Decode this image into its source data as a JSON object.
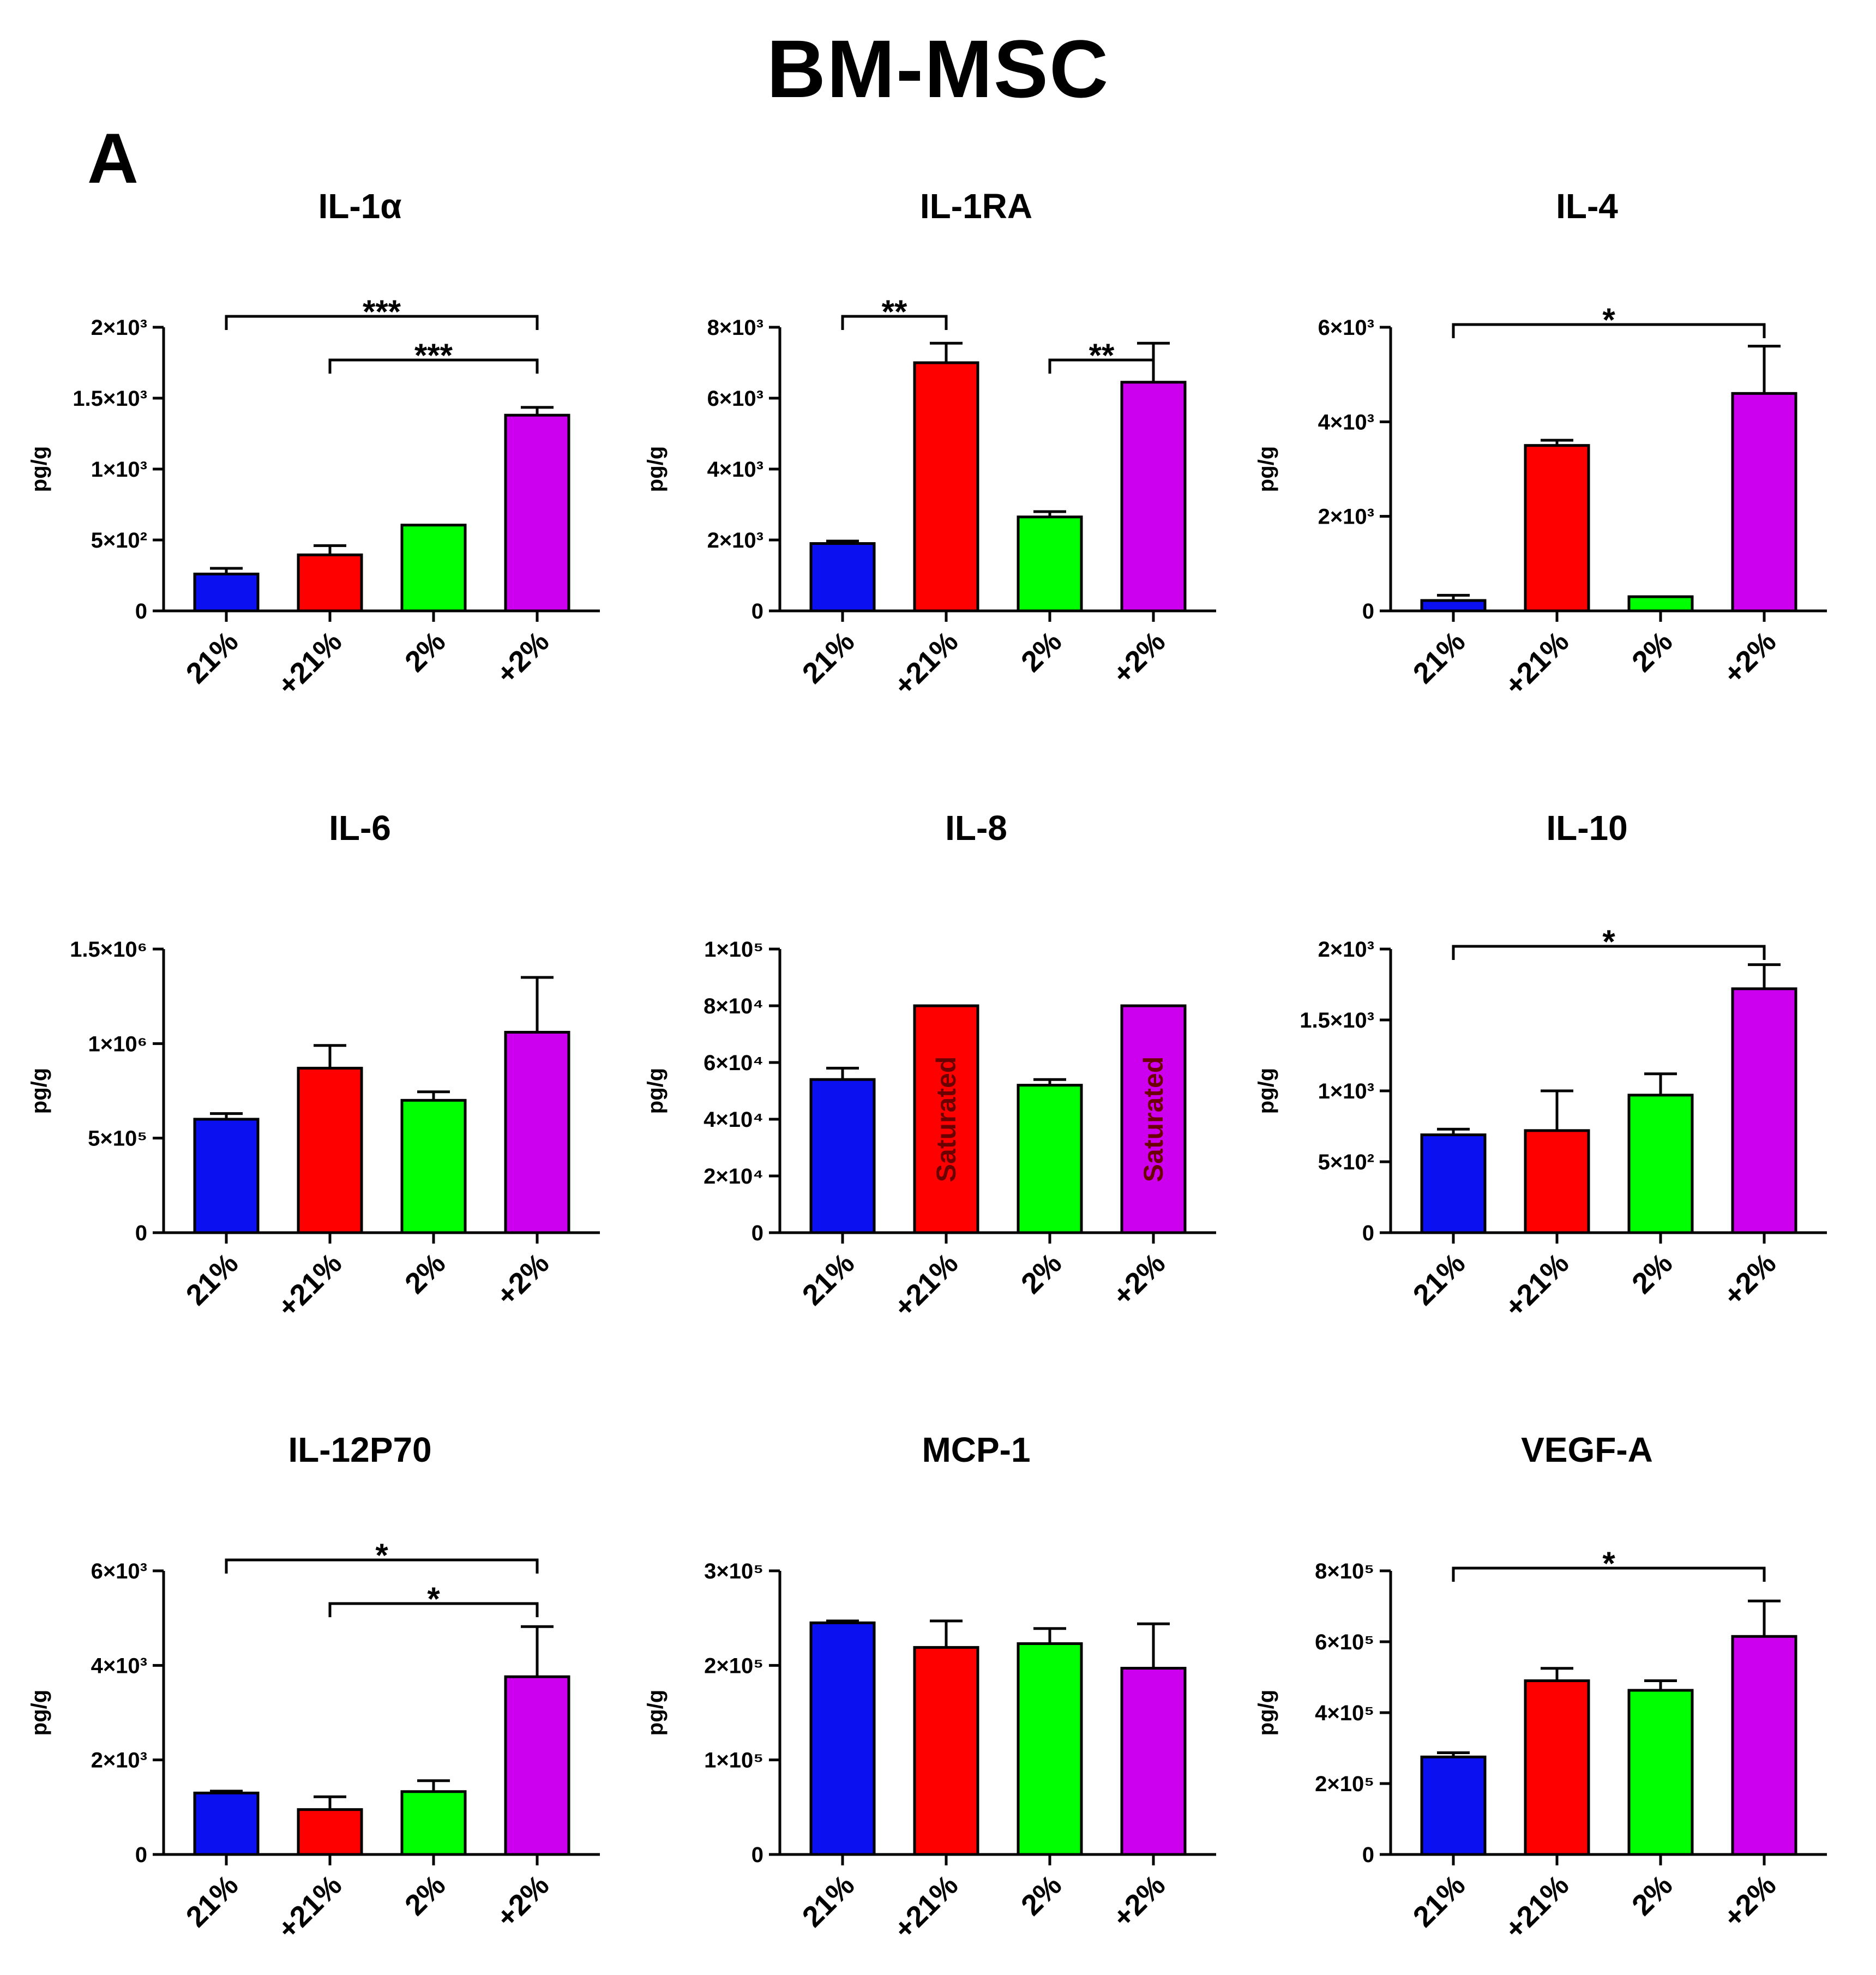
{
  "figure": {
    "title": "BM-MSC",
    "panel_label": "A"
  },
  "colors": {
    "21%": "#0a10f0",
    "+21%": "#ff0000",
    "2%": "#00ff00",
    "+2%": "#cc00ee"
  },
  "chart_data": [
    {
      "type": "bar",
      "title": "IL-1α",
      "ylabel": "pg/g",
      "ylim": [
        0,
        2000
      ],
      "yticks": [
        0,
        500,
        1000,
        1500,
        2000
      ],
      "ytick_labels": [
        "0",
        "5×10²",
        "1×10³",
        "1.5×10³",
        "2×10³"
      ],
      "categories": [
        "21%",
        "+21%",
        "2%",
        "+2%"
      ],
      "values": [
        260,
        395,
        605,
        1380
      ],
      "errors": [
        40,
        65,
        0,
        55
      ],
      "significance": [
        {
          "from": 0,
          "to": 3,
          "label": "***"
        },
        {
          "from": 1,
          "to": 3,
          "label": "***"
        }
      ]
    },
    {
      "type": "bar",
      "title": "IL-1RA",
      "ylabel": "pg/g",
      "ylim": [
        0,
        8000
      ],
      "yticks": [
        0,
        2000,
        4000,
        6000,
        8000
      ],
      "ytick_labels": [
        "0",
        "2×10³",
        "4×10³",
        "6×10³",
        "8×10³"
      ],
      "categories": [
        "21%",
        "+21%",
        "2%",
        "+2%"
      ],
      "values": [
        1900,
        7000,
        2650,
        6450
      ],
      "errors": [
        70,
        550,
        150,
        1100
      ],
      "significance": [
        {
          "from": 0,
          "to": 1,
          "label": "**"
        },
        {
          "from": 2,
          "to": 3,
          "label": "**"
        }
      ]
    },
    {
      "type": "bar",
      "title": "IL-4",
      "ylabel": "pg/g",
      "ylim": [
        0,
        6000
      ],
      "yticks": [
        0,
        2000,
        4000,
        6000
      ],
      "ytick_labels": [
        "0",
        "2×10³",
        "4×10³",
        "6×10³"
      ],
      "categories": [
        "21%",
        "+21%",
        "2%",
        "+2%"
      ],
      "values": [
        220,
        3500,
        300,
        4600
      ],
      "errors": [
        110,
        110,
        0,
        1000
      ],
      "significance": [
        {
          "from": 0,
          "to": 3,
          "label": "*"
        }
      ]
    },
    {
      "type": "bar",
      "title": "IL-6",
      "ylabel": "pg/g",
      "ylim": [
        0,
        1500000
      ],
      "yticks": [
        0,
        500000,
        1000000,
        1500000
      ],
      "ytick_labels": [
        "0",
        "5×10⁵",
        "1×10⁶",
        "1.5×10⁶"
      ],
      "categories": [
        "21%",
        "+21%",
        "2%",
        "+2%"
      ],
      "values": [
        600000,
        870000,
        700000,
        1060000
      ],
      "errors": [
        30000,
        120000,
        45000,
        290000
      ],
      "significance": []
    },
    {
      "type": "bar",
      "title": "IL-8",
      "ylabel": "pg/g",
      "ylim": [
        0,
        100000
      ],
      "yticks": [
        0,
        20000,
        40000,
        60000,
        80000,
        100000
      ],
      "ytick_labels": [
        "0",
        "2×10⁴",
        "4×10⁴",
        "6×10⁴",
        "8×10⁴",
        "1×10⁵"
      ],
      "categories": [
        "21%",
        "+21%",
        "2%",
        "+2%"
      ],
      "values": [
        54000,
        80000,
        52000,
        80000
      ],
      "errors": [
        4000,
        0,
        2000,
        0
      ],
      "bar_labels": [
        "",
        "Saturated",
        "",
        "Saturated"
      ],
      "significance": []
    },
    {
      "type": "bar",
      "title": "IL-10",
      "ylabel": "pg/g",
      "ylim": [
        0,
        2000
      ],
      "yticks": [
        0,
        500,
        1000,
        1500,
        2000
      ],
      "ytick_labels": [
        "0",
        "5×10²",
        "1×10³",
        "1.5×10³",
        "2×10³"
      ],
      "categories": [
        "21%",
        "+21%",
        "2%",
        "+2%"
      ],
      "values": [
        690,
        720,
        970,
        1720
      ],
      "errors": [
        40,
        280,
        150,
        170
      ],
      "significance": [
        {
          "from": 0,
          "to": 3,
          "label": "*"
        }
      ]
    },
    {
      "type": "bar",
      "title": "IL-12P70",
      "ylabel": "pg/g",
      "ylim": [
        0,
        6000
      ],
      "yticks": [
        0,
        2000,
        4000,
        6000
      ],
      "ytick_labels": [
        "0",
        "2×10³",
        "4×10³",
        "6×10³"
      ],
      "categories": [
        "21%",
        "+21%",
        "2%",
        "+2%"
      ],
      "values": [
        1300,
        950,
        1330,
        3760
      ],
      "errors": [
        40,
        270,
        230,
        1060
      ],
      "significance": [
        {
          "from": 0,
          "to": 3,
          "label": "*"
        },
        {
          "from": 1,
          "to": 3,
          "label": "*"
        }
      ]
    },
    {
      "type": "bar",
      "title": "MCP-1",
      "ylabel": "pg/g",
      "ylim": [
        0,
        300000
      ],
      "yticks": [
        0,
        100000,
        200000,
        300000
      ],
      "ytick_labels": [
        "0",
        "1×10⁵",
        "2×10⁵",
        "3×10⁵"
      ],
      "categories": [
        "21%",
        "+21%",
        "2%",
        "+2%"
      ],
      "values": [
        245000,
        219000,
        223000,
        197000
      ],
      "errors": [
        2000,
        28000,
        16000,
        47000
      ],
      "significance": []
    },
    {
      "type": "bar",
      "title": "VEGF-A",
      "ylabel": "pg/g",
      "ylim": [
        0,
        800000
      ],
      "yticks": [
        0,
        200000,
        400000,
        600000,
        800000
      ],
      "ytick_labels": [
        "0",
        "2×10⁵",
        "4×10⁵",
        "6×10⁵",
        "8×10⁵"
      ],
      "categories": [
        "21%",
        "+21%",
        "2%",
        "+2%"
      ],
      "values": [
        275000,
        490000,
        463000,
        615000
      ],
      "errors": [
        12000,
        35000,
        27000,
        100000
      ],
      "significance": [
        {
          "from": 0,
          "to": 3,
          "label": "*"
        }
      ]
    }
  ]
}
